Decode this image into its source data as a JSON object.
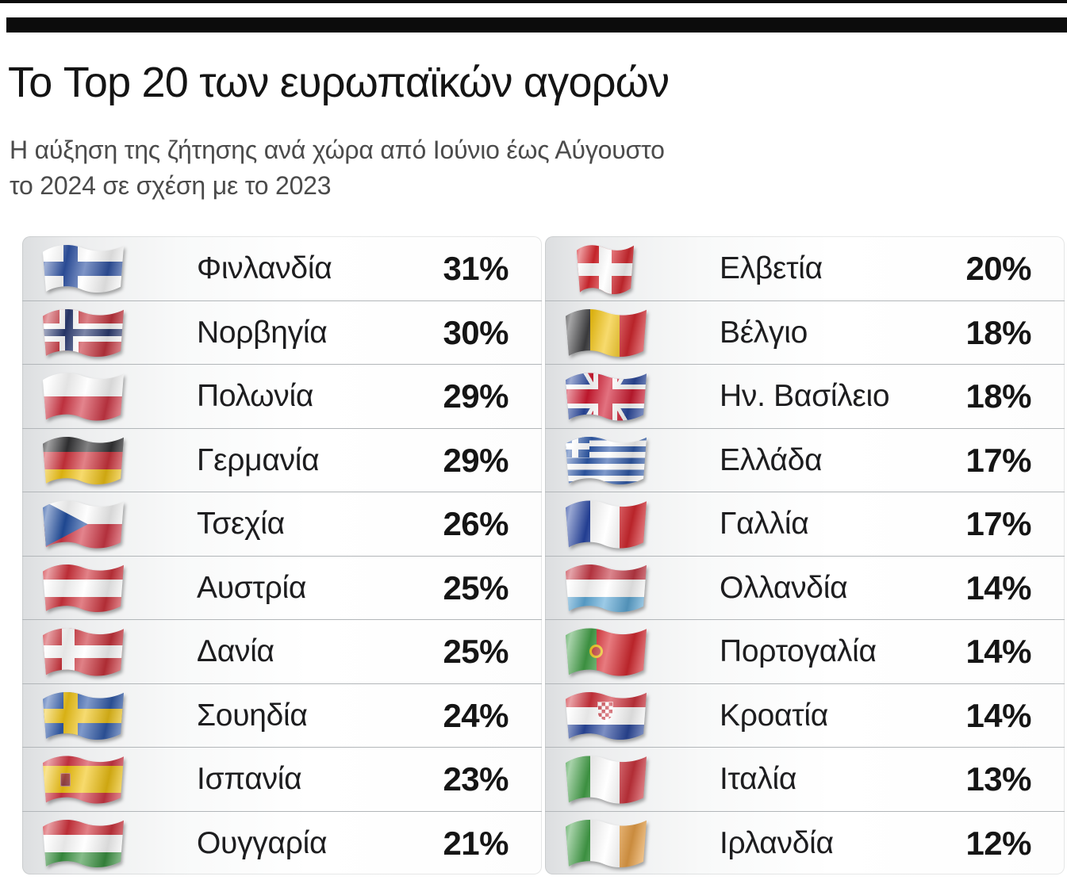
{
  "header": {
    "title": "Το Top 20 των ευρωπαϊκών αγορών",
    "subtitle_lines": [
      "Η αύξηση της ζήτησης ανά χώρα από Ιούνιο έως Αύγουστο",
      "το 2024 σε σχέση με το 2023"
    ]
  },
  "colors": {
    "header_bar": "#0c0c0c",
    "title_text": "#141414",
    "subtitle_text": "#4b4b4b",
    "row_divider": "#b2b6b9",
    "panel_gradient_start": "#dcdee0",
    "panel_gradient_end": "#ffffff"
  },
  "chart_data": {
    "type": "table",
    "title": "Το Top 20 των ευρωπαϊκών αγορών",
    "subtitle": "Η αύξηση της ζήτησης ανά χώρα από Ιούνιο έως Αύγουστο το 2024 σε σχέση με το 2023",
    "value_unit": "%",
    "layout": {
      "columns": 2,
      "rows_per_column": 10,
      "grid": false,
      "legend": false
    },
    "entries": [
      {
        "country": "Φινλανδία",
        "flag": "finland",
        "value": 31,
        "label": "31%"
      },
      {
        "country": "Νορβηγία",
        "flag": "norway",
        "value": 30,
        "label": "30%"
      },
      {
        "country": "Πολωνία",
        "flag": "poland",
        "value": 29,
        "label": "29%"
      },
      {
        "country": "Γερμανία",
        "flag": "germany",
        "value": 29,
        "label": "29%"
      },
      {
        "country": "Τσεχία",
        "flag": "czechia",
        "value": 26,
        "label": "26%"
      },
      {
        "country": "Αυστρία",
        "flag": "austria",
        "value": 25,
        "label": "25%"
      },
      {
        "country": "Δανία",
        "flag": "denmark",
        "value": 25,
        "label": "25%"
      },
      {
        "country": "Σουηδία",
        "flag": "sweden",
        "value": 24,
        "label": "24%"
      },
      {
        "country": "Ισπανία",
        "flag": "spain",
        "value": 23,
        "label": "23%"
      },
      {
        "country": "Ουγγαρία",
        "flag": "hungary",
        "value": 21,
        "label": "21%"
      },
      {
        "country": "Ελβετία",
        "flag": "switzerland",
        "value": 20,
        "label": "20%"
      },
      {
        "country": "Βέλγιο",
        "flag": "belgium",
        "value": 18,
        "label": "18%"
      },
      {
        "country": "Ην. Βασίλειο",
        "flag": "united-kingdom",
        "value": 18,
        "label": "18%"
      },
      {
        "country": "Ελλάδα",
        "flag": "greece",
        "value": 17,
        "label": "17%"
      },
      {
        "country": "Γαλλία",
        "flag": "france",
        "value": 17,
        "label": "17%"
      },
      {
        "country": "Ολλανδία",
        "flag": "netherlands",
        "value": 14,
        "label": "14%"
      },
      {
        "country": "Πορτογαλία",
        "flag": "portugal",
        "value": 14,
        "label": "14%"
      },
      {
        "country": "Κροατία",
        "flag": "croatia",
        "value": 14,
        "label": "14%"
      },
      {
        "country": "Ιταλία",
        "flag": "italy",
        "value": 13,
        "label": "13%"
      },
      {
        "country": "Ιρλανδία",
        "flag": "ireland",
        "value": 12,
        "label": "12%"
      }
    ]
  }
}
